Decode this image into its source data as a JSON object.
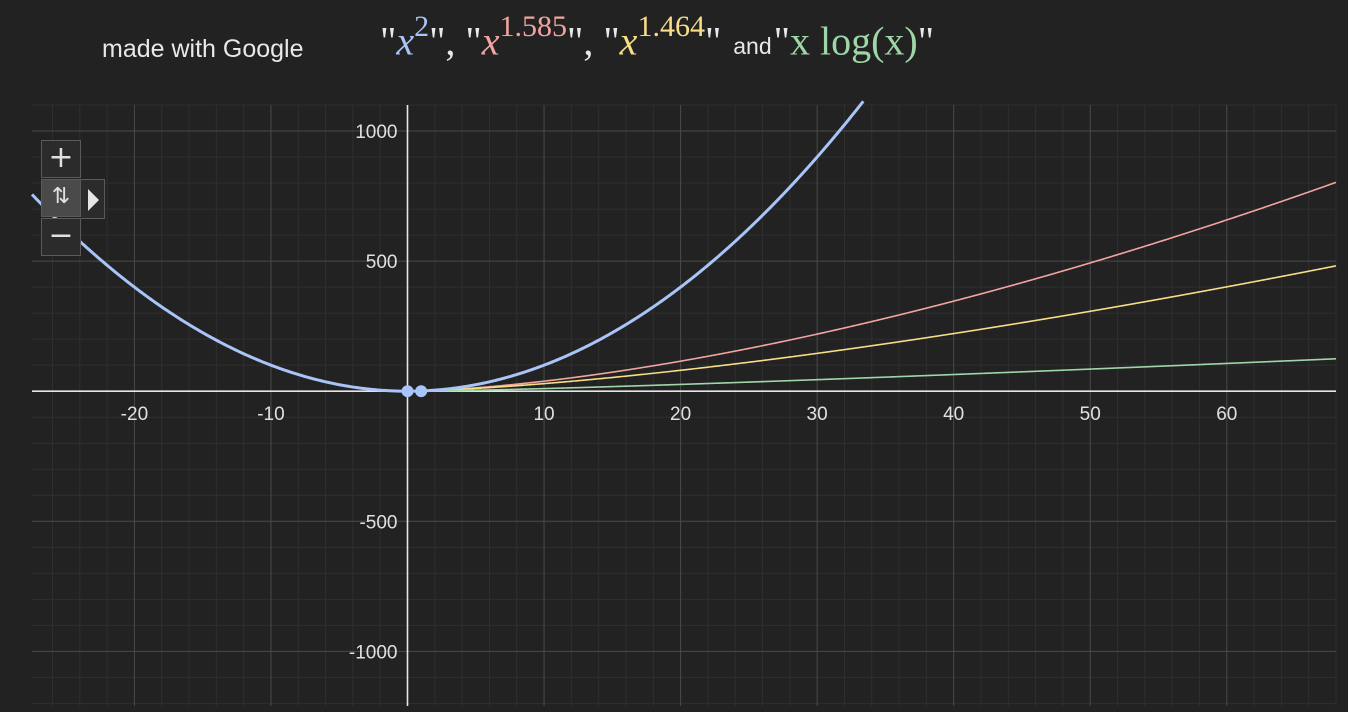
{
  "header": {
    "made_with": "made with Google",
    "formula": {
      "q": "\"",
      "sep": "\", \"",
      "close_and": "\" ",
      "and": "and",
      "f1_base": "x",
      "f1_exp": "2",
      "f2_base": "x",
      "f2_exp": "1.585",
      "f3_base": "x",
      "f3_exp": "1.464",
      "f4_text": "x log(x)",
      "end": "\""
    }
  },
  "controls": {
    "zoom_in": "+",
    "zoom_mode": "⇅",
    "zoom_out": "−"
  },
  "colors": {
    "background": "#222222",
    "grid_major": "#4a4a4a",
    "grid_minor": "#2f2f2f",
    "axis": "#e6e6e6",
    "x_squared": "#a8c4f8",
    "x_1_585": "#f2a5a0",
    "x_1_464": "#f7dd86",
    "x_log_x": "#9fd6a8"
  },
  "chart_data": {
    "type": "line",
    "title": "",
    "xlabel": "",
    "ylabel": "",
    "xlim": [
      -27.5,
      68
    ],
    "ylim": [
      -1210,
      1100
    ],
    "grid": true,
    "x_ticks": [
      -20,
      -10,
      10,
      20,
      30,
      40,
      50,
      60
    ],
    "x_tick_labels": [
      "-20",
      "-10",
      "10",
      "20",
      "30",
      "40",
      "50",
      "60"
    ],
    "y_ticks": [
      1000,
      500,
      -500,
      -1000
    ],
    "y_tick_labels": [
      "1000",
      "500",
      "-500",
      "-1000"
    ],
    "series": [
      {
        "expr": "x^2",
        "color": "#a8c4f8",
        "width": 3,
        "x_from": -27.5,
        "x_to": 68
      },
      {
        "expr": "x^1.585",
        "color": "#f2a5a0",
        "width": 1.6,
        "x_from": 0,
        "x_to": 68
      },
      {
        "expr": "x^1.464",
        "color": "#f7dd86",
        "width": 1.6,
        "x_from": 0,
        "x_to": 68
      },
      {
        "expr": "x*log(x)",
        "color": "#9fd6a8",
        "width": 1.6,
        "x_from": 0.01,
        "x_to": 68
      }
    ],
    "points": [
      {
        "x": 0,
        "y": 0,
        "color": "#a8c4f8"
      },
      {
        "x": 1,
        "y": 0,
        "color": "#a8c4f8"
      }
    ]
  }
}
